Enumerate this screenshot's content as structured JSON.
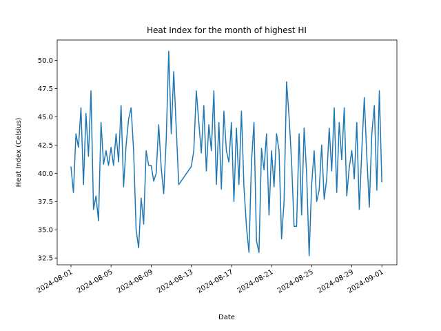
{
  "chart_data": {
    "type": "line",
    "title": "Heat Index for the month of highest HI",
    "xlabel": "Date",
    "ylabel": "Heat Index (Celsius)",
    "x": [
      0,
      0.25,
      0.5,
      0.75,
      1,
      1.25,
      1.5,
      1.75,
      2,
      2.25,
      2.5,
      2.75,
      3,
      3.25,
      3.5,
      3.75,
      4,
      4.25,
      4.5,
      4.75,
      5,
      5.25,
      5.5,
      5.75,
      6,
      6.25,
      6.5,
      6.75,
      7,
      7.25,
      7.5,
      7.75,
      8,
      8.25,
      8.5,
      8.75,
      9,
      9.25,
      9.5,
      9.75,
      10,
      10.25,
      10.5,
      10.75,
      12,
      12.25,
      12.5,
      12.75,
      13,
      13.25,
      13.5,
      13.75,
      14,
      14.25,
      14.5,
      14.75,
      15,
      15.25,
      15.5,
      15.75,
      16,
      16.25,
      16.5,
      16.75,
      17,
      17.25,
      17.5,
      17.75,
      18,
      18.25,
      18.5,
      18.75,
      19,
      19.25,
      19.5,
      19.75,
      20,
      20.25,
      20.5,
      20.75,
      21,
      21.25,
      21.5,
      21.75,
      22,
      22.25,
      22.5,
      22.75,
      23,
      23.25,
      23.5,
      23.75,
      24,
      24.25,
      24.5,
      24.75,
      25,
      25.25,
      25.5,
      25.75,
      26,
      26.25,
      26.5,
      26.75,
      27,
      27.25,
      27.5,
      27.75,
      28,
      28.25,
      28.5,
      28.75,
      29,
      29.25,
      29.5,
      29.75,
      30,
      30.25,
      30.5,
      30.75,
      31
    ],
    "series": [
      {
        "name": "Heat Index",
        "color": "#1f77b4",
        "values": [
          40.6,
          38.3,
          43.5,
          42.3,
          45.8,
          39.0,
          45.3,
          41.5,
          47.3,
          36.8,
          38.0,
          35.8,
          44.5,
          40.8,
          42.0,
          40.7,
          42.3,
          40.7,
          43.5,
          41.0,
          46.0,
          38.8,
          42.5,
          44.8,
          45.8,
          42.0,
          35.0,
          33.4,
          37.8,
          35.5,
          42.0,
          40.7,
          40.7,
          39.3,
          40.0,
          44.3,
          40.5,
          38.2,
          43.0,
          50.8,
          43.5,
          49.0,
          44.0,
          39.0,
          40.6,
          42.0,
          47.3,
          44.5,
          41.8,
          46.0,
          40.2,
          44.3,
          42.0,
          47.3,
          39.0,
          44.5,
          38.6,
          45.5,
          42.0,
          41.0,
          44.5,
          37.5,
          44.0,
          39.0,
          45.5,
          38.8,
          35.3,
          33.0,
          41.0,
          44.5,
          34.0,
          33.0,
          42.2,
          40.3,
          43.5,
          36.3,
          42.0,
          38.8,
          43.5,
          42.0,
          34.2,
          37.5,
          48.1,
          45.0,
          41.0,
          35.3,
          35.3,
          43.5,
          36.3,
          44.0,
          40.0,
          32.7,
          39.0,
          42.0,
          37.5,
          38.5,
          42.5,
          37.7,
          39.5,
          44.0,
          40.2,
          45.8,
          38.3,
          44.5,
          41.2,
          45.8,
          38.0,
          40.5,
          42.0,
          39.5,
          44.5,
          36.8,
          42.0,
          46.7,
          41.5,
          37.0,
          43.5,
          46.0,
          38.5,
          47.3,
          39.2
        ]
      }
    ],
    "xlim": [
      -1.37,
      32.5
    ],
    "xticks": [
      {
        "value": 0,
        "label": "2024-08-01"
      },
      {
        "value": 4,
        "label": "2024-08-05"
      },
      {
        "value": 8,
        "label": "2024-08-09"
      },
      {
        "value": 12,
        "label": "2024-08-13"
      },
      {
        "value": 16,
        "label": "2024-08-17"
      },
      {
        "value": 20,
        "label": "2024-08-21"
      },
      {
        "value": 24,
        "label": "2024-08-25"
      },
      {
        "value": 28,
        "label": "2024-08-29"
      },
      {
        "value": 31,
        "label": "2024-09-01"
      }
    ],
    "ylim": [
      31.9,
      51.8
    ],
    "yticks": [
      32.5,
      {
        "value": 35,
        "label": "35.0"
      },
      37.5,
      {
        "value": 40,
        "label": "40.0"
      },
      42.5,
      {
        "value": 45,
        "label": "45.0"
      },
      47.5,
      {
        "value": 50,
        "label": "50.0"
      }
    ]
  }
}
